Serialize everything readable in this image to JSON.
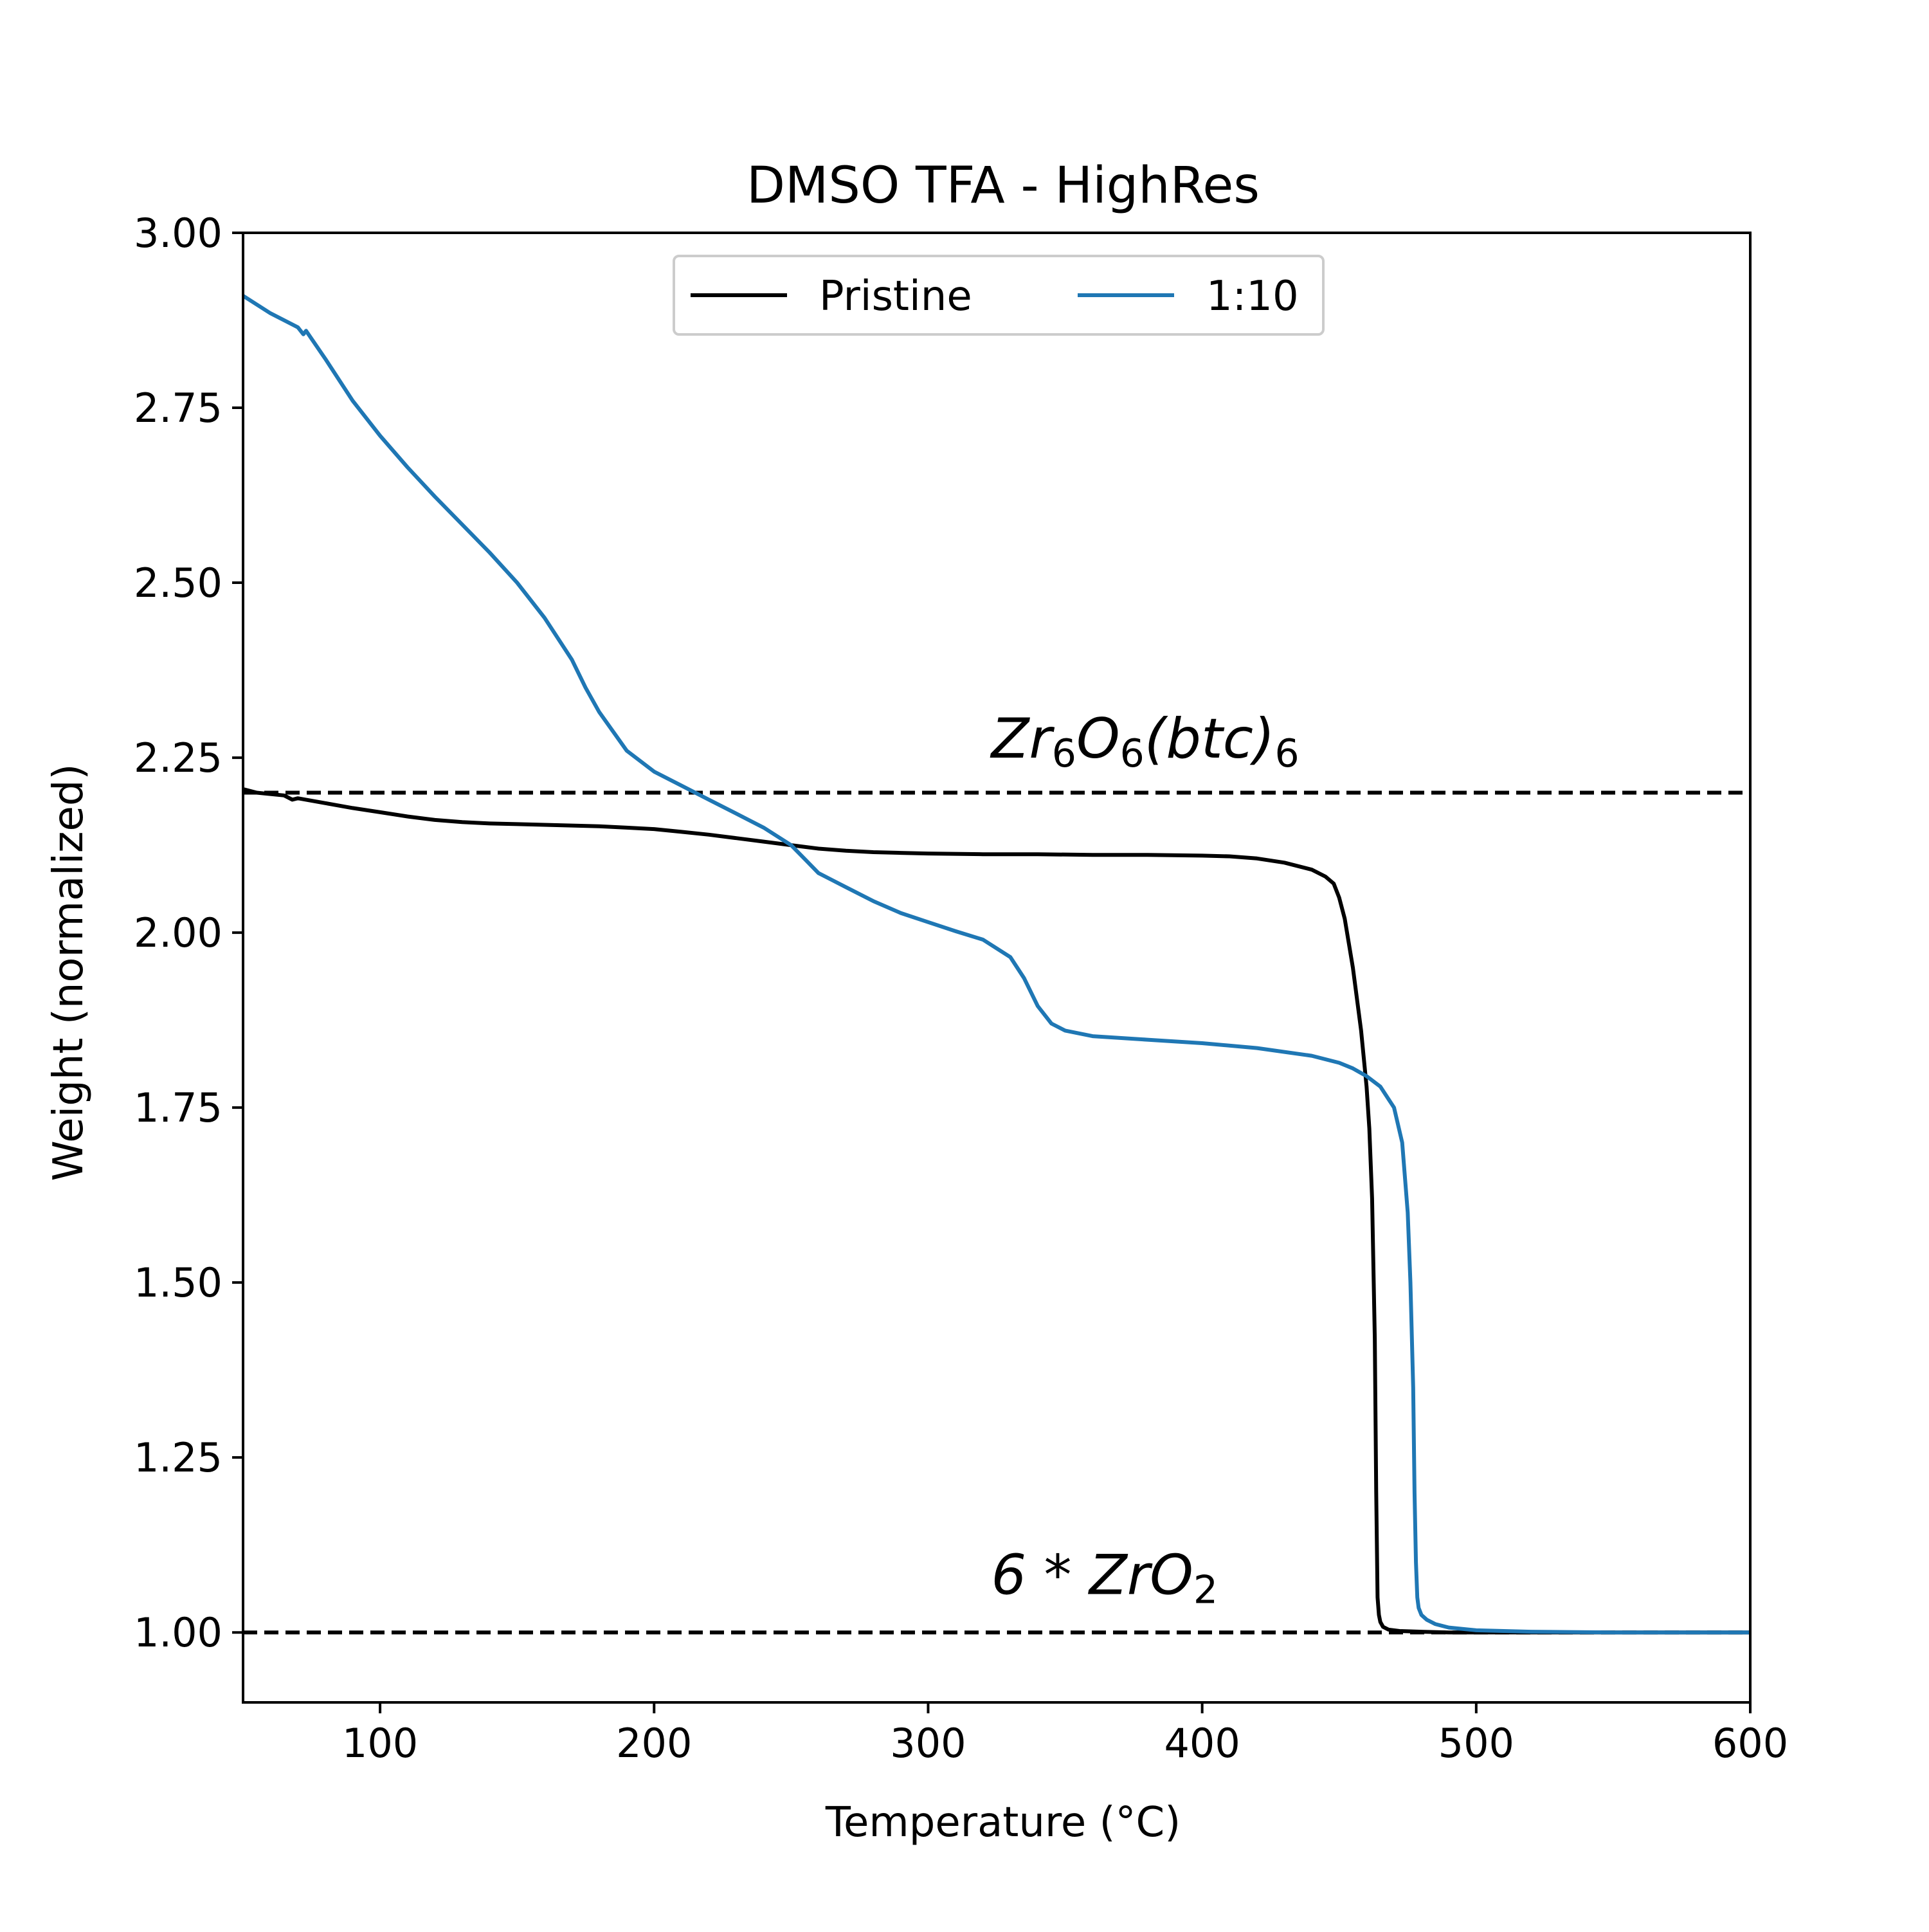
{
  "chart_data": {
    "type": "line",
    "title": "DMSO TFA - HighRes",
    "xlabel": "Temperature (°C)",
    "ylabel": "Weight (normalized)",
    "xlim": [
      50,
      600
    ],
    "ylim": [
      0.9,
      3.0
    ],
    "xticks": [
      100,
      200,
      300,
      400,
      500,
      600
    ],
    "xtick_labels": [
      "100",
      "200",
      "300",
      "400",
      "500",
      "600"
    ],
    "yticks": [
      1.0,
      1.25,
      1.5,
      1.75,
      2.0,
      2.25,
      2.5,
      2.75,
      3.0
    ],
    "ytick_labels": [
      "1.00",
      "1.25",
      "1.50",
      "1.75",
      "2.00",
      "2.25",
      "2.50",
      "2.75",
      "3.00"
    ],
    "grid": false,
    "legend": {
      "placement": "upper center",
      "columns": 2,
      "entries": [
        "Pristine",
        "1:10"
      ]
    },
    "reference_lines": [
      {
        "y": 2.2,
        "style": "dashed",
        "color": "#000000",
        "label_parts": [
          {
            "text": "Zr",
            "sub": false
          },
          {
            "text": "6",
            "sub": true
          },
          {
            "text": "O",
            "sub": false
          },
          {
            "text": "6",
            "sub": true
          },
          {
            "text": "(btc)",
            "sub": false
          },
          {
            "text": "6",
            "sub": true
          }
        ],
        "label_x": 323,
        "label_y": 2.25
      },
      {
        "y": 1.0,
        "style": "dashed",
        "color": "#000000",
        "label_parts": [
          {
            "text": "6 * ZrO",
            "sub": false
          },
          {
            "text": "2",
            "sub": true
          }
        ],
        "label_x": 323,
        "label_y": 1.055
      }
    ],
    "series": [
      {
        "name": "Pristine",
        "color": "#000000",
        "x": [
          50,
          55,
          60,
          65,
          68,
          70,
          80,
          90,
          100,
          110,
          120,
          130,
          140,
          150,
          160,
          170,
          180,
          190,
          200,
          210,
          220,
          230,
          240,
          250,
          260,
          270,
          280,
          290,
          300,
          320,
          340,
          360,
          380,
          400,
          410,
          420,
          430,
          440,
          445,
          448,
          450,
          452,
          455,
          458,
          460,
          461,
          462,
          463,
          463.5,
          464,
          464.5,
          465,
          466,
          468,
          472,
          480,
          490,
          500,
          520,
          550,
          600
        ],
        "y": [
          2.205,
          2.2,
          2.198,
          2.196,
          2.19,
          2.192,
          2.185,
          2.178,
          2.172,
          2.166,
          2.161,
          2.158,
          2.156,
          2.155,
          2.154,
          2.153,
          2.152,
          2.15,
          2.148,
          2.144,
          2.14,
          2.135,
          2.13,
          2.125,
          2.12,
          2.117,
          2.115,
          2.114,
          2.113,
          2.112,
          2.112,
          2.111,
          2.111,
          2.11,
          2.109,
          2.106,
          2.1,
          2.09,
          2.08,
          2.07,
          2.05,
          2.02,
          1.95,
          1.86,
          1.78,
          1.72,
          1.62,
          1.42,
          1.2,
          1.05,
          1.025,
          1.015,
          1.008,
          1.004,
          1.002,
          1.001,
          1.0,
          1.0,
          1.0,
          1.0,
          1.0
        ]
      },
      {
        "name": "1:10",
        "color": "#1f77b4",
        "x": [
          50,
          60,
          70,
          72,
          73,
          80,
          90,
          100,
          110,
          120,
          130,
          140,
          150,
          160,
          170,
          175,
          180,
          190,
          200,
          210,
          220,
          230,
          240,
          250,
          255,
          260,
          265,
          270,
          280,
          290,
          300,
          310,
          320,
          330,
          335,
          340,
          345,
          350,
          360,
          380,
          400,
          420,
          440,
          450,
          455,
          460,
          465,
          470,
          473,
          475,
          476,
          477,
          477.5,
          478,
          478.5,
          479,
          480,
          482,
          485,
          490,
          500,
          520,
          550,
          600
        ],
        "y": [
          2.91,
          2.885,
          2.865,
          2.855,
          2.86,
          2.82,
          2.76,
          2.71,
          2.665,
          2.623,
          2.583,
          2.543,
          2.5,
          2.45,
          2.39,
          2.35,
          2.315,
          2.26,
          2.23,
          2.21,
          2.19,
          2.17,
          2.15,
          2.125,
          2.105,
          2.085,
          2.075,
          2.065,
          2.045,
          2.028,
          2.015,
          2.002,
          1.99,
          1.965,
          1.935,
          1.895,
          1.87,
          1.86,
          1.852,
          1.847,
          1.842,
          1.835,
          1.824,
          1.814,
          1.806,
          1.795,
          1.78,
          1.75,
          1.7,
          1.6,
          1.5,
          1.35,
          1.2,
          1.1,
          1.05,
          1.035,
          1.025,
          1.018,
          1.012,
          1.007,
          1.003,
          1.001,
          1.0,
          1.0
        ]
      }
    ]
  }
}
